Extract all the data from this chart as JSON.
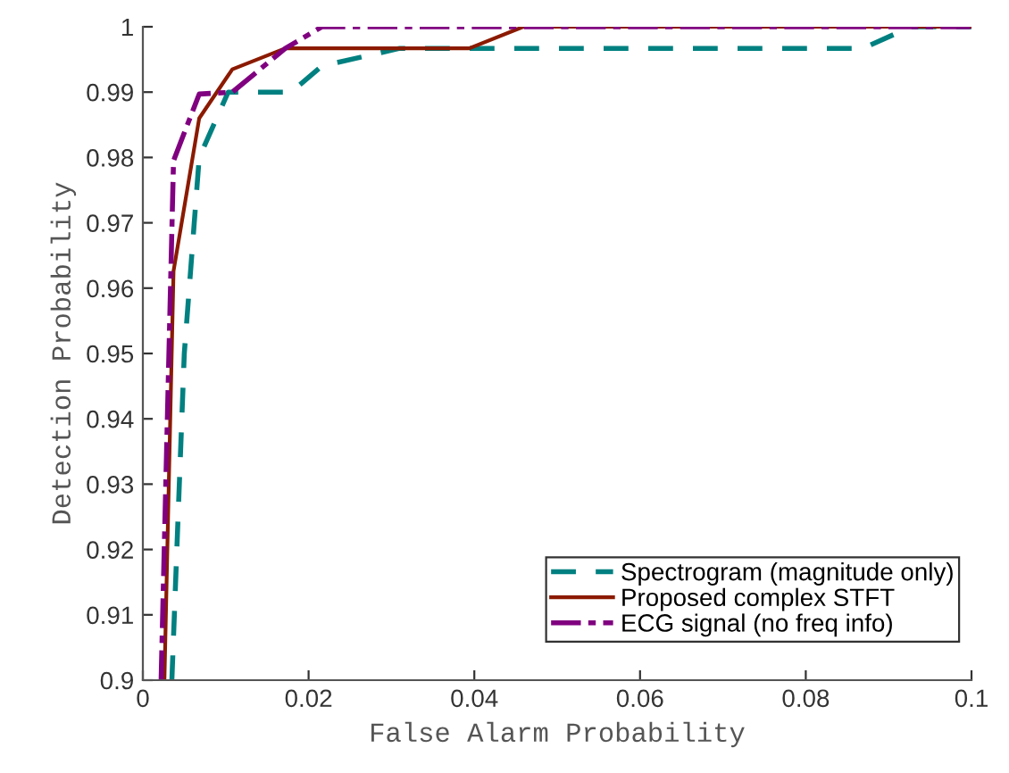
{
  "chart_data": {
    "type": "line",
    "xlabel": "False Alarm Probability",
    "ylabel": "Detection Probability",
    "xlim": [
      0,
      0.1
    ],
    "ylim": [
      0.9,
      1
    ],
    "xticks": [
      0,
      0.02,
      0.04,
      0.06,
      0.08,
      0.1
    ],
    "yticks": [
      0.9,
      0.91,
      0.92,
      0.93,
      0.94,
      0.95,
      0.96,
      0.97,
      0.98,
      0.99,
      1
    ],
    "grid": false,
    "legend": "bottom right",
    "series": [
      {
        "name": "Spectrogram (magnitude only)",
        "color": "#008080",
        "line_style": "dashed",
        "x": [
          0.0035,
          0.005,
          0.0068,
          0.0103,
          0.0179,
          0.0216,
          0.031,
          0.0869,
          0.0927,
          0.1
        ],
        "values": [
          0.9,
          0.95,
          0.98,
          0.99,
          0.99,
          0.994,
          0.9967,
          0.9967,
          1,
          1
        ]
      },
      {
        "name": "Proposed complex STFT",
        "color": "#8b1a00",
        "line_style": "solid",
        "x": [
          0.0026,
          0.0037,
          0.0068,
          0.0108,
          0.0172,
          0.0394,
          0.0459,
          0.1
        ],
        "values": [
          0.9,
          0.9626,
          0.986,
          0.9935,
          0.9967,
          0.9967,
          1,
          1
        ]
      },
      {
        "name": "ECG signal (no freq info)",
        "color": "#800080",
        "line_style": "dashdot",
        "x": [
          0.0022,
          0.0037,
          0.0068,
          0.0108,
          0.0172,
          0.0216,
          0.1
        ],
        "values": [
          0.9,
          0.9795,
          0.9897,
          0.99,
          0.9967,
          1,
          1
        ]
      }
    ]
  }
}
